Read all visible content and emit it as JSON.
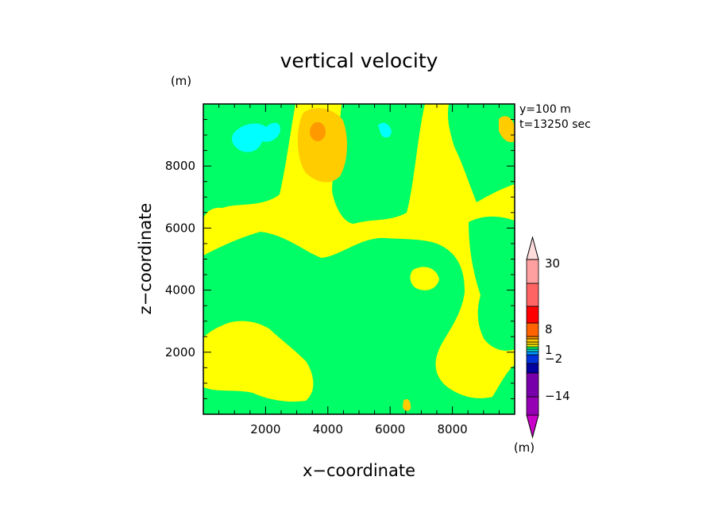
{
  "chart_data": {
    "type": "heatmap",
    "title": "vertical velocity",
    "xlabel": "x−coordinate",
    "ylabel": "z−coordinate",
    "x_unit": "(m)",
    "y_unit": "(m)",
    "xlim": [
      0,
      10000
    ],
    "ylim": [
      0,
      10000
    ],
    "xticks": [
      2000,
      4000,
      6000,
      8000
    ],
    "xtick_labels": [
      "2000",
      "4000",
      "6000",
      "8000"
    ],
    "yticks": [
      2000,
      4000,
      6000,
      8000
    ],
    "ytick_labels": [
      "2000",
      "4000",
      "6000",
      "8000"
    ],
    "annotations": [
      "y=100 m",
      "t=13250 sec"
    ],
    "colorbar": {
      "unit": "(m)",
      "labels": [
        {
          "value": 30,
          "text": "30"
        },
        {
          "value": 8,
          "text": "8"
        },
        {
          "value": 1,
          "text": "1"
        },
        {
          "value": -2,
          "text": "−2"
        },
        {
          "value": -14,
          "text": "−14"
        }
      ],
      "colors": [
        "#c800c8",
        "#9600b4",
        "#7800aa",
        "#0000a0",
        "#0032dc",
        "#0096ff",
        "#00dcdc",
        "#00ff64",
        "#ffff00",
        "#ffdc00",
        "#ffc800",
        "#ff9600",
        "#ff6400",
        "#ff0000",
        "#ff6464",
        "#ffa0a0",
        "#ffdcdc"
      ]
    },
    "field_colors": {
      "below_neg2": "#00ffff",
      "neg2_to_0": "#00ff66",
      "0_to_1": "#ffff00",
      "1_to_3": "#ffcc00",
      "3_to_8": "#ff9900"
    }
  }
}
